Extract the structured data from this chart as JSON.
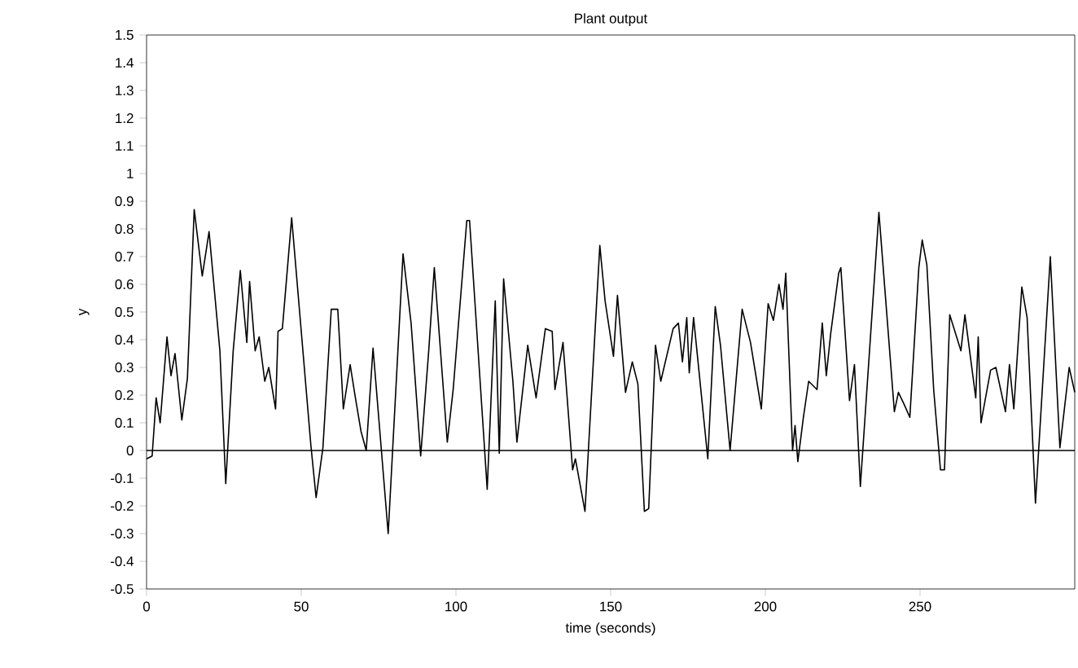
{
  "chart_data": {
    "type": "line",
    "title": "Plant output",
    "xlabel": "time (seconds)",
    "ylabel": "y",
    "xlim": [
      0,
      300
    ],
    "xticks": [
      0,
      50,
      100,
      150,
      200,
      250
    ],
    "ylim": [
      -0.5,
      1.5
    ],
    "yticks": [
      -0.5,
      -0.4,
      -0.3,
      -0.2,
      -0.1,
      0,
      0.1,
      0.2,
      0.3,
      0.4,
      0.5,
      0.6,
      0.7,
      0.8,
      0.9,
      1,
      1.1,
      1.2,
      1.3,
      1.4,
      1.5
    ],
    "grid": false,
    "marker": "none",
    "line_style": "solid",
    "ref_lines": [
      {
        "axis": "y",
        "value": 0,
        "color": "#000000"
      }
    ],
    "series": [
      {
        "color": "#000000",
        "x": [
          0,
          1.8,
          3.1,
          4.4,
          6.6,
          7.9,
          9.2,
          11.4,
          13.2,
          15.4,
          18,
          20.2,
          23.7,
          25.6,
          28,
          30.3,
          32.4,
          33.3,
          35.1,
          36.4,
          38.2,
          39.5,
          41.7,
          42.5,
          43.9,
          46.9,
          50,
          53.1,
          54.8,
          57,
          59.7,
          61.8,
          63.6,
          65.8,
          67.5,
          69.3,
          71,
          73.2,
          78.1,
          82.9,
          85.5,
          88.6,
          91.2,
          93,
          97.2,
          99.1,
          103.5,
          104.4,
          110.1,
          112.7,
          114,
          115.4,
          118.4,
          119.7,
          123.2,
          125.9,
          128.9,
          131.1,
          132,
          134.6,
          137.7,
          138.6,
          141.7,
          146.5,
          148.2,
          150.9,
          152.2,
          154.8,
          157,
          158.8,
          160.9,
          162.3,
          164.5,
          166.2,
          170.2,
          171.9,
          173.2,
          174.6,
          175.4,
          176.8,
          181.4,
          183.8,
          185.5,
          188.6,
          192.5,
          195.2,
          198.7,
          200.9,
          202.6,
          204.4,
          205.7,
          206.6,
          208.8,
          209.6,
          210.5,
          212.3,
          214,
          216.7,
          218.4,
          219.7,
          221.1,
          223.7,
          224.4,
          227.2,
          228.8,
          230.7,
          236.7,
          241.7,
          243,
          244.7,
          246.7,
          249.6,
          250.7,
          252.2,
          254.4,
          256.6,
          257.9,
          259.6,
          263.2,
          264.5,
          268,
          268.8,
          269.7,
          272.8,
          274.5,
          277.6,
          278.9,
          280.3,
          282.9,
          284.6,
          287.3,
          292.1,
          295.2,
          298.2,
          300
        ],
        "values": [
          -0.03,
          -0.02,
          0.19,
          0.1,
          0.41,
          0.27,
          0.35,
          0.11,
          0.26,
          0.87,
          0.63,
          0.79,
          0.36,
          -0.12,
          0.36,
          0.65,
          0.39,
          0.61,
          0.36,
          0.41,
          0.25,
          0.3,
          0.15,
          0.43,
          0.44,
          0.84,
          0.43,
          0.02,
          -0.17,
          0.01,
          0.51,
          0.51,
          0.15,
          0.31,
          0.19,
          0.07,
          0,
          0.37,
          -0.3,
          0.71,
          0.46,
          -0.02,
          0.36,
          0.66,
          0.03,
          0.22,
          0.83,
          0.83,
          -0.14,
          0.54,
          -0.01,
          0.62,
          0.25,
          0.03,
          0.38,
          0.19,
          0.44,
          0.43,
          0.22,
          0.39,
          -0.07,
          -0.03,
          -0.22,
          0.74,
          0.54,
          0.34,
          0.56,
          0.21,
          0.32,
          0.24,
          -0.22,
          -0.21,
          0.38,
          0.25,
          0.44,
          0.46,
          0.32,
          0.48,
          0.28,
          0.48,
          -0.03,
          0.52,
          0.38,
          0,
          0.51,
          0.39,
          0.15,
          0.53,
          0.47,
          0.6,
          0.51,
          0.64,
          0,
          0.09,
          -0.04,
          0.12,
          0.25,
          0.22,
          0.46,
          0.27,
          0.42,
          0.64,
          0.66,
          0.18,
          0.31,
          -0.13,
          0.86,
          0.14,
          0.21,
          0.17,
          0.12,
          0.66,
          0.76,
          0.67,
          0.22,
          -0.07,
          -0.07,
          0.49,
          0.36,
          0.49,
          0.19,
          0.41,
          0.1,
          0.29,
          0.3,
          0.14,
          0.31,
          0.15,
          0.59,
          0.48,
          -0.19,
          0.7,
          0.01,
          0.3,
          0.21
        ]
      }
    ]
  }
}
